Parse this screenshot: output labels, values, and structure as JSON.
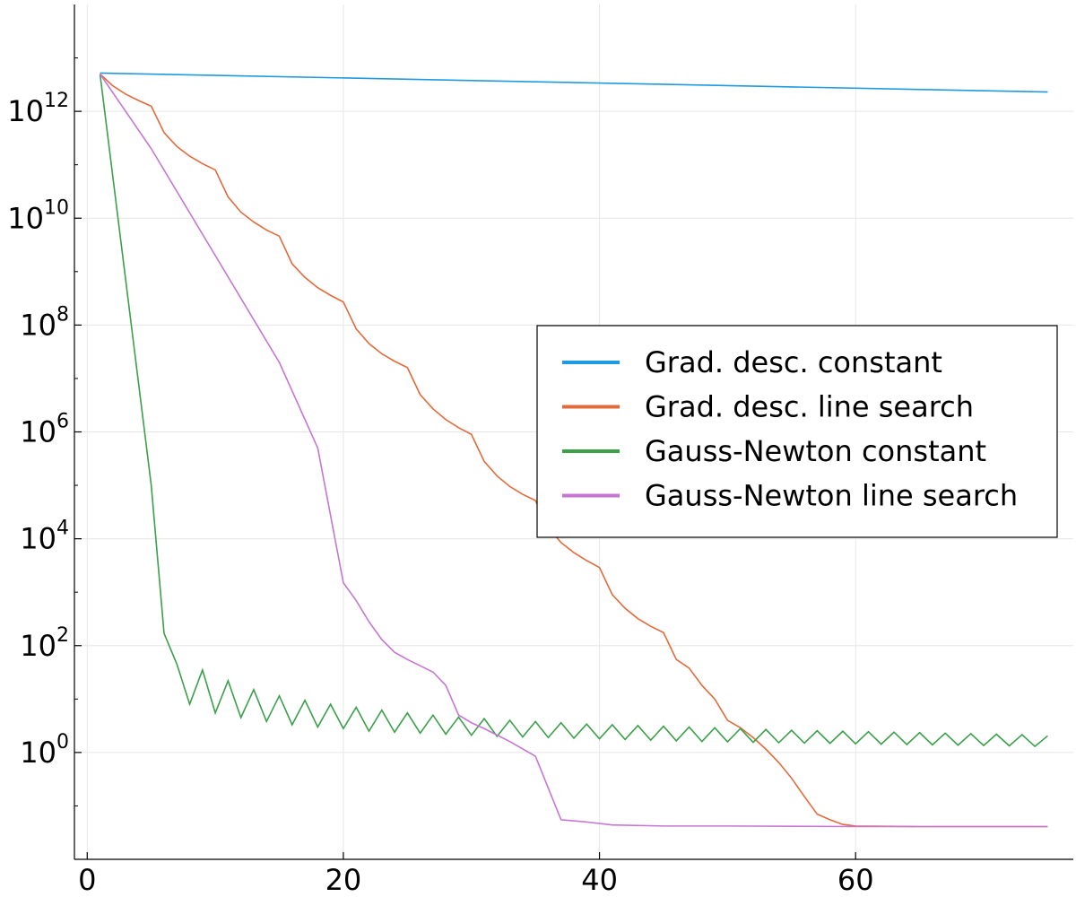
{
  "chart_data": {
    "type": "line",
    "title": "",
    "xlabel": "",
    "ylabel": "",
    "xlim": [
      -1,
      77
    ],
    "ylim": [
      0.01,
      100000000000000.0
    ],
    "yscale": "log",
    "grid": true,
    "legend_position": "right",
    "x_ticks": [
      {
        "value": 0,
        "label": "0"
      },
      {
        "value": 20,
        "label": "20"
      },
      {
        "value": 40,
        "label": "40"
      },
      {
        "value": 60,
        "label": "60"
      }
    ],
    "y_ticks": [
      {
        "value": 1,
        "base": "10",
        "exp": "0"
      },
      {
        "value": 100,
        "base": "10",
        "exp": "2"
      },
      {
        "value": 10000,
        "base": "10",
        "exp": "4"
      },
      {
        "value": 1000000,
        "base": "10",
        "exp": "6"
      },
      {
        "value": 100000000,
        "base": "10",
        "exp": "8"
      },
      {
        "value": 10000000000,
        "base": "10",
        "exp": "10"
      },
      {
        "value": 1000000000000,
        "base": "10",
        "exp": "12"
      }
    ],
    "series": [
      {
        "name": "Grad. desc. constant",
        "color": "#1f9ae0",
        "points": [
          [
            1,
            5200000000000.0
          ],
          [
            75,
            2300000000000.0
          ]
        ]
      },
      {
        "name": "Grad. desc. line search",
        "color": "#e26a3b",
        "points": [
          [
            1,
            5000000000000.0
          ],
          [
            2,
            3000000000000.0
          ],
          [
            3,
            2100000000000.0
          ],
          [
            4,
            1600000000000.0
          ],
          [
            5,
            1250000000000.0
          ],
          [
            6,
            400000000000.0
          ],
          [
            7,
            220000000000.0
          ],
          [
            8,
            145000000000.0
          ],
          [
            9,
            105000000000.0
          ],
          [
            10,
            80000000000.0
          ],
          [
            11,
            25000000000.0
          ],
          [
            12,
            13000000000.0
          ],
          [
            13,
            8500000000.0
          ],
          [
            14,
            6000000000.0
          ],
          [
            15,
            4600000000.0
          ],
          [
            16,
            1400000000.0
          ],
          [
            17,
            780000000.0
          ],
          [
            18,
            500000000.0
          ],
          [
            19,
            360000000.0
          ],
          [
            20,
            270000000.0
          ],
          [
            21,
            85000000.0
          ],
          [
            22,
            45000000.0
          ],
          [
            23,
            29000000.0
          ],
          [
            24,
            21000000.0
          ],
          [
            25,
            16000000.0
          ],
          [
            26,
            5000000.0
          ],
          [
            27,
            2700000.0
          ],
          [
            28,
            1700000.0
          ],
          [
            29,
            1200000.0
          ],
          [
            30,
            900000.0
          ],
          [
            31,
            280000.0
          ],
          [
            32,
            150000.0
          ],
          [
            33,
            95000.0
          ],
          [
            34,
            68000.0
          ],
          [
            35,
            52000.0
          ],
          [
            36,
            16000.0
          ],
          [
            37,
            8500.0
          ],
          [
            38,
            5500.0
          ],
          [
            39,
            3900.0
          ],
          [
            40,
            2900.0
          ],
          [
            41,
            900.0
          ],
          [
            42,
            500.0
          ],
          [
            43,
            320.0
          ],
          [
            44,
            230.0
          ],
          [
            45,
            175.0
          ],
          [
            46,
            55
          ],
          [
            47,
            38
          ],
          [
            48,
            18
          ],
          [
            49,
            10
          ],
          [
            50,
            4.0
          ],
          [
            51,
            2.9
          ],
          [
            52,
            1.9
          ],
          [
            53,
            1.15
          ],
          [
            54,
            0.65
          ],
          [
            55,
            0.33
          ],
          [
            56,
            0.15
          ],
          [
            57,
            0.07
          ],
          [
            58,
            0.055
          ],
          [
            59,
            0.045
          ],
          [
            60,
            0.042
          ],
          [
            65,
            0.041
          ],
          [
            70,
            0.041
          ],
          [
            75,
            0.041
          ]
        ]
      },
      {
        "name": "Gauss-Newton constant",
        "color": "#3aa04a",
        "points": [
          [
            1,
            5000000000000.0
          ],
          [
            5,
            100000.0
          ],
          [
            6,
            170
          ],
          [
            7,
            45
          ],
          [
            8,
            8
          ],
          [
            9,
            35
          ],
          [
            10,
            5.5
          ],
          [
            11,
            22
          ],
          [
            12,
            4.5
          ],
          [
            13,
            15
          ],
          [
            14,
            3.8
          ],
          [
            15,
            11.5
          ],
          [
            16,
            3.3
          ],
          [
            17,
            9.5
          ],
          [
            18,
            3.0
          ],
          [
            19,
            8.0
          ],
          [
            20,
            2.8
          ],
          [
            21,
            7.0
          ],
          [
            22,
            2.5
          ],
          [
            23,
            6.2
          ],
          [
            24,
            2.4
          ],
          [
            25,
            5.5
          ],
          [
            26,
            2.3
          ],
          [
            27,
            5.0
          ],
          [
            28,
            2.2
          ],
          [
            29,
            4.6
          ],
          [
            30,
            2.1
          ],
          [
            31,
            4.3
          ],
          [
            32,
            2.0
          ],
          [
            33,
            4.0
          ],
          [
            34,
            1.95
          ],
          [
            35,
            3.8
          ],
          [
            36,
            1.9
          ],
          [
            37,
            3.6
          ],
          [
            38,
            1.85
          ],
          [
            39,
            3.4
          ],
          [
            40,
            1.8
          ],
          [
            41,
            3.3
          ],
          [
            42,
            1.75
          ],
          [
            43,
            3.2
          ],
          [
            44,
            1.7
          ],
          [
            45,
            3.1
          ],
          [
            46,
            1.65
          ],
          [
            47,
            3.0
          ],
          [
            48,
            1.6
          ],
          [
            49,
            2.9
          ],
          [
            50,
            1.58
          ],
          [
            51,
            2.8
          ],
          [
            52,
            1.55
          ],
          [
            53,
            2.7
          ],
          [
            54,
            1.52
          ],
          [
            55,
            2.6
          ],
          [
            56,
            1.5
          ],
          [
            57,
            2.55
          ],
          [
            58,
            1.48
          ],
          [
            59,
            2.5
          ],
          [
            60,
            1.45
          ],
          [
            61,
            2.45
          ],
          [
            62,
            1.43
          ],
          [
            63,
            2.4
          ],
          [
            64,
            1.41
          ],
          [
            65,
            2.35
          ],
          [
            66,
            1.39
          ],
          [
            67,
            2.3
          ],
          [
            68,
            1.37
          ],
          [
            69,
            2.25
          ],
          [
            70,
            1.35
          ],
          [
            71,
            2.2
          ],
          [
            72,
            1.33
          ],
          [
            73,
            2.15
          ],
          [
            74,
            1.3
          ],
          [
            75,
            2.05
          ]
        ]
      },
      {
        "name": "Gauss-Newton line search",
        "color": "#c576d2",
        "points": [
          [
            1,
            5000000000000.0
          ],
          [
            5,
            200000000000.0
          ],
          [
            10,
            2000000000.0
          ],
          [
            15,
            20000000.0
          ],
          [
            18,
            500000.0
          ],
          [
            20,
            1500.0
          ],
          [
            21,
            700
          ],
          [
            22,
            280
          ],
          [
            23,
            130
          ],
          [
            24,
            75
          ],
          [
            25,
            55
          ],
          [
            26,
            42
          ],
          [
            27,
            32
          ],
          [
            28,
            18
          ],
          [
            29,
            5.0
          ],
          [
            30,
            3.6
          ],
          [
            31,
            2.8
          ],
          [
            33,
            1.6
          ],
          [
            35,
            0.85
          ],
          [
            37,
            0.055
          ],
          [
            39,
            0.05
          ],
          [
            41,
            0.044
          ],
          [
            45,
            0.042
          ],
          [
            50,
            0.042
          ],
          [
            60,
            0.041
          ],
          [
            75,
            0.041
          ]
        ]
      }
    ]
  }
}
